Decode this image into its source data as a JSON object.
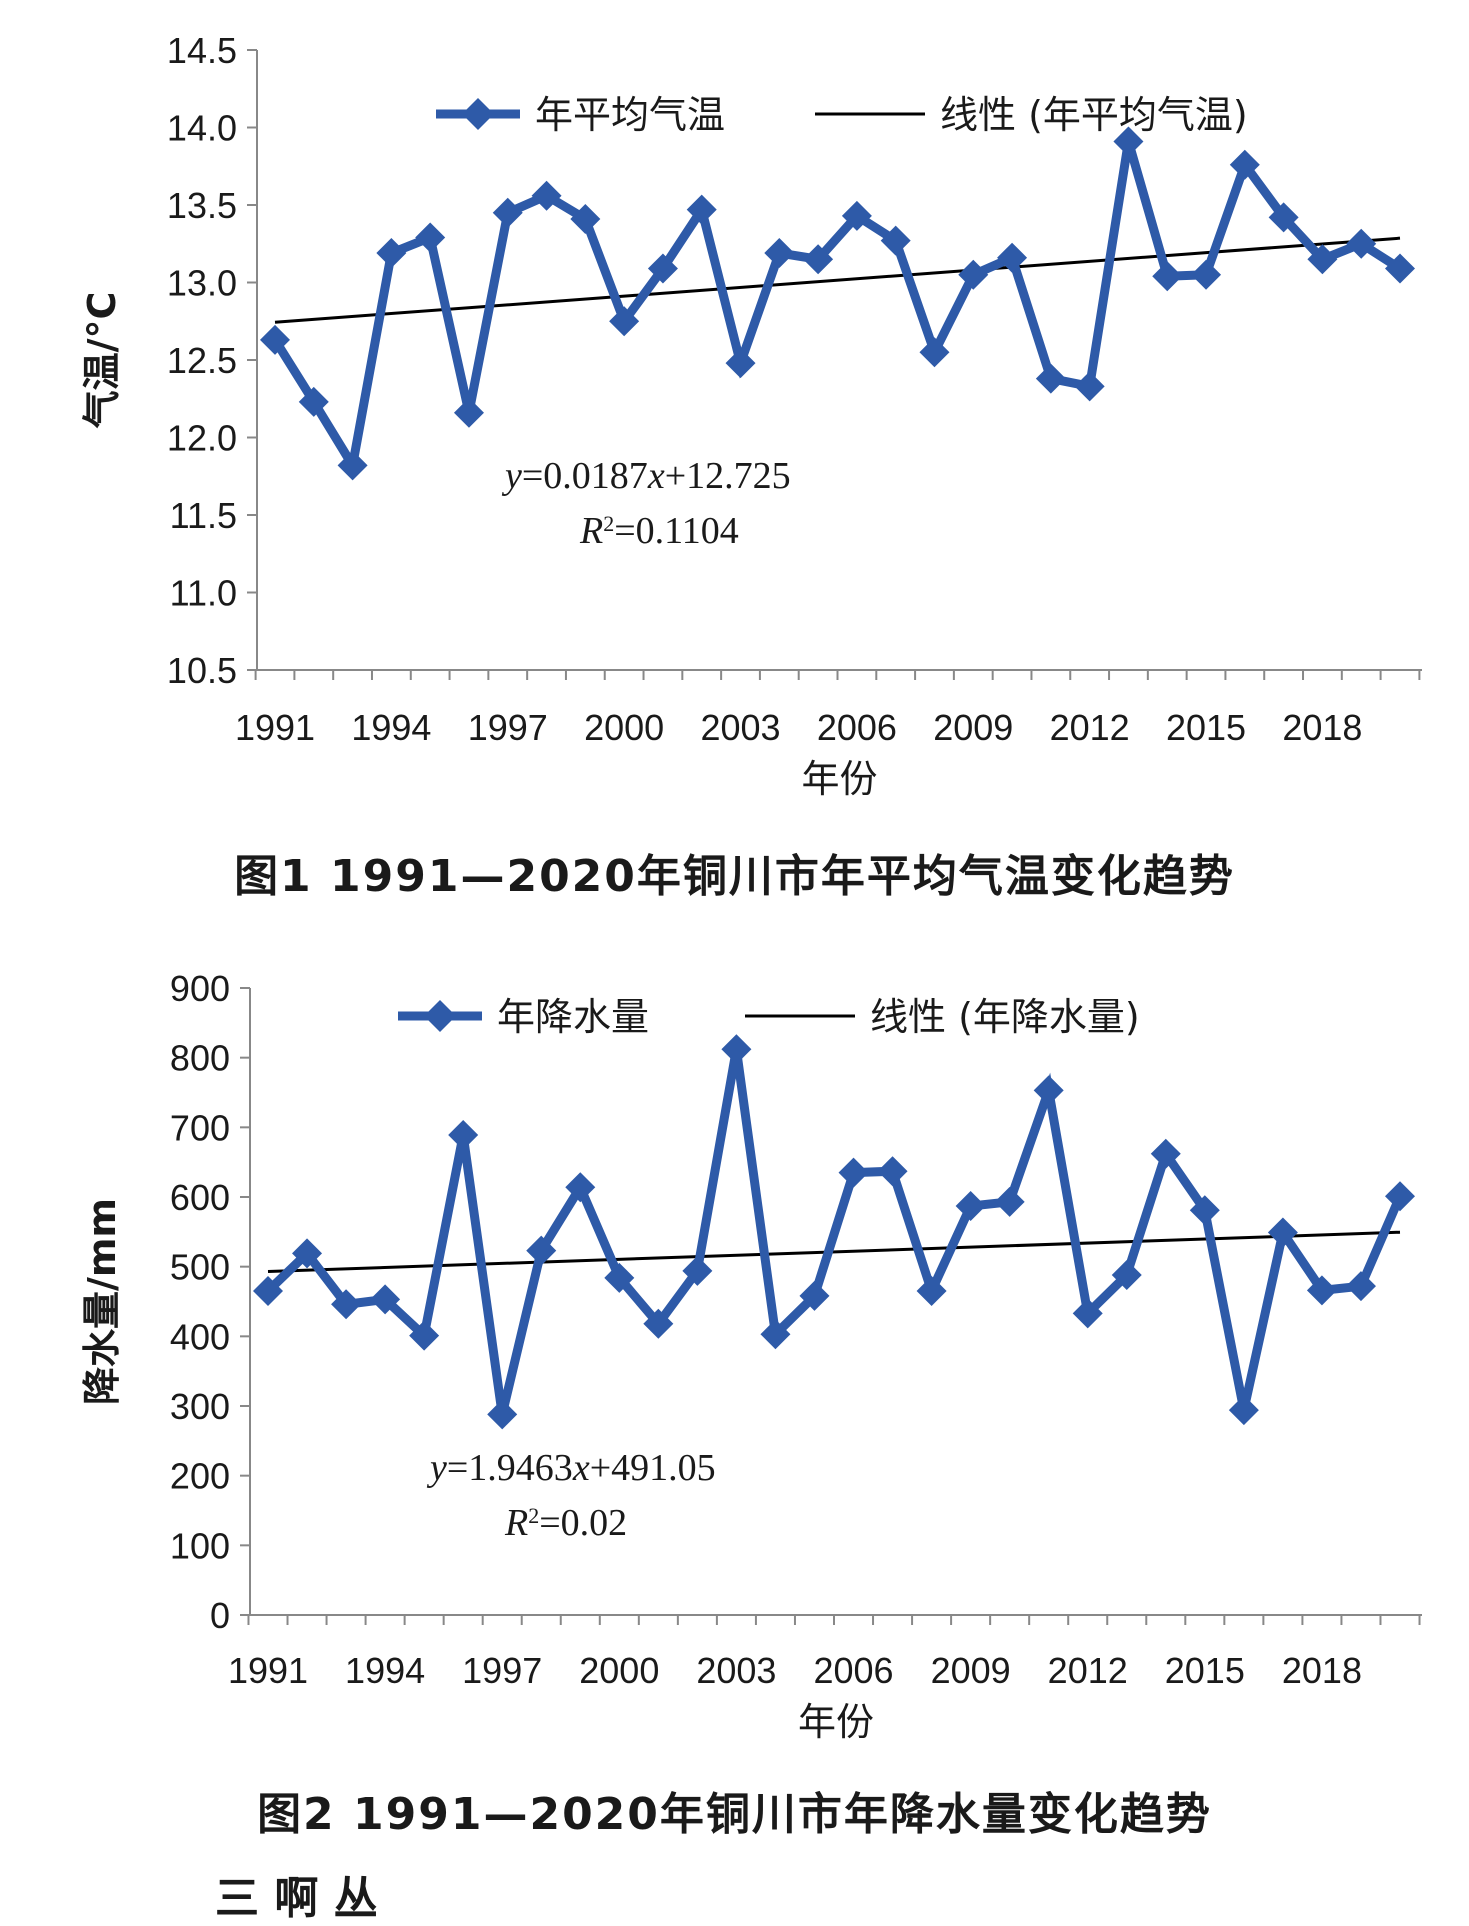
{
  "figures": [
    {
      "caption": "图1  1991—2020年铜川市年平均气温变化趋势",
      "chart_data": {
        "type": "line",
        "xlabel": "年份",
        "ylabel": "气温/°C",
        "xlim": [
          1991,
          2020
        ],
        "ylim": [
          10.5,
          14.5
        ],
        "yticks": [
          "10.5",
          "11.0",
          "11.5",
          "12.0",
          "12.5",
          "13.0",
          "13.5",
          "14.0",
          "14.5"
        ],
        "xticks": [
          "1991",
          "1994",
          "1997",
          "2000",
          "2003",
          "2006",
          "2009",
          "2012",
          "2015",
          "2018"
        ],
        "x": [
          1991,
          1992,
          1993,
          1994,
          1995,
          1996,
          1997,
          1998,
          1999,
          2000,
          2001,
          2002,
          2003,
          2004,
          2005,
          2006,
          2007,
          2008,
          2009,
          2010,
          2011,
          2012,
          2013,
          2014,
          2015,
          2016,
          2017,
          2018,
          2019,
          2020
        ],
        "series": [
          {
            "name": "年平均气温",
            "color": "#2e5aa8",
            "marker": "diamond",
            "values": [
              12.63,
              12.23,
              11.82,
              13.19,
              13.29,
              12.16,
              13.45,
              13.56,
              13.41,
              12.75,
              13.09,
              13.47,
              12.48,
              13.19,
              13.15,
              13.43,
              13.27,
              12.55,
              13.05,
              13.16,
              12.38,
              12.33,
              13.91,
              13.04,
              13.05,
              13.76,
              13.42,
              13.15,
              13.25,
              13.09
            ]
          }
        ],
        "trendline": {
          "name": "线性 (年平均气温)",
          "slope": 0.0187,
          "intercept": 12.725,
          "color": "#000000"
        },
        "equation": {
          "y_var": "y",
          "equals_eq": "=0.0187",
          "x_var": "x",
          "rest_eq": "+12.725",
          "r_var": "R",
          "r_exp": "2",
          "equals_r2": "=0.1104"
        },
        "legend_position": "top"
      }
    },
    {
      "caption": "图2  1991—2020年铜川市年降水量变化趋势",
      "chart_data": {
        "type": "line",
        "xlabel": "年份",
        "ylabel": "降水量/mm",
        "xlim": [
          1991,
          2020
        ],
        "ylim": [
          0,
          900
        ],
        "yticks": [
          "0",
          "100",
          "200",
          "300",
          "400",
          "500",
          "600",
          "700",
          "800",
          "900"
        ],
        "xticks": [
          "1991",
          "1994",
          "1997",
          "2000",
          "2003",
          "2006",
          "2009",
          "2012",
          "2015",
          "2018"
        ],
        "x": [
          1991,
          1992,
          1993,
          1994,
          1995,
          1996,
          1997,
          1998,
          1999,
          2000,
          2001,
          2002,
          2003,
          2004,
          2005,
          2006,
          2007,
          2008,
          2009,
          2010,
          2011,
          2012,
          2013,
          2014,
          2015,
          2016,
          2017,
          2018,
          2019,
          2020
        ],
        "series": [
          {
            "name": "年降水量",
            "color": "#2e5aa8",
            "marker": "diamond",
            "values": [
              465,
              519,
              446,
              453,
              401,
              689,
              288,
              523,
              614,
              484,
              418,
              494,
              812,
              403,
              458,
              635,
              637,
              465,
              587,
              593,
              753,
              433,
              488,
              662,
              581,
              294,
              549,
              466,
              472,
              601
            ]
          }
        ],
        "trendline": {
          "name": "线性 (年降水量)",
          "slope": 1.9463,
          "intercept": 491.05,
          "color": "#000000"
        },
        "equation": {
          "y_var": "y",
          "equals_eq": "=1.9463",
          "x_var": "x",
          "rest_eq": "+491.05",
          "r_var": "R",
          "r_exp": "2",
          "equals_r2": "=0.02"
        },
        "legend_position": "top"
      }
    }
  ],
  "footer_fragment": "三  啊  丛"
}
